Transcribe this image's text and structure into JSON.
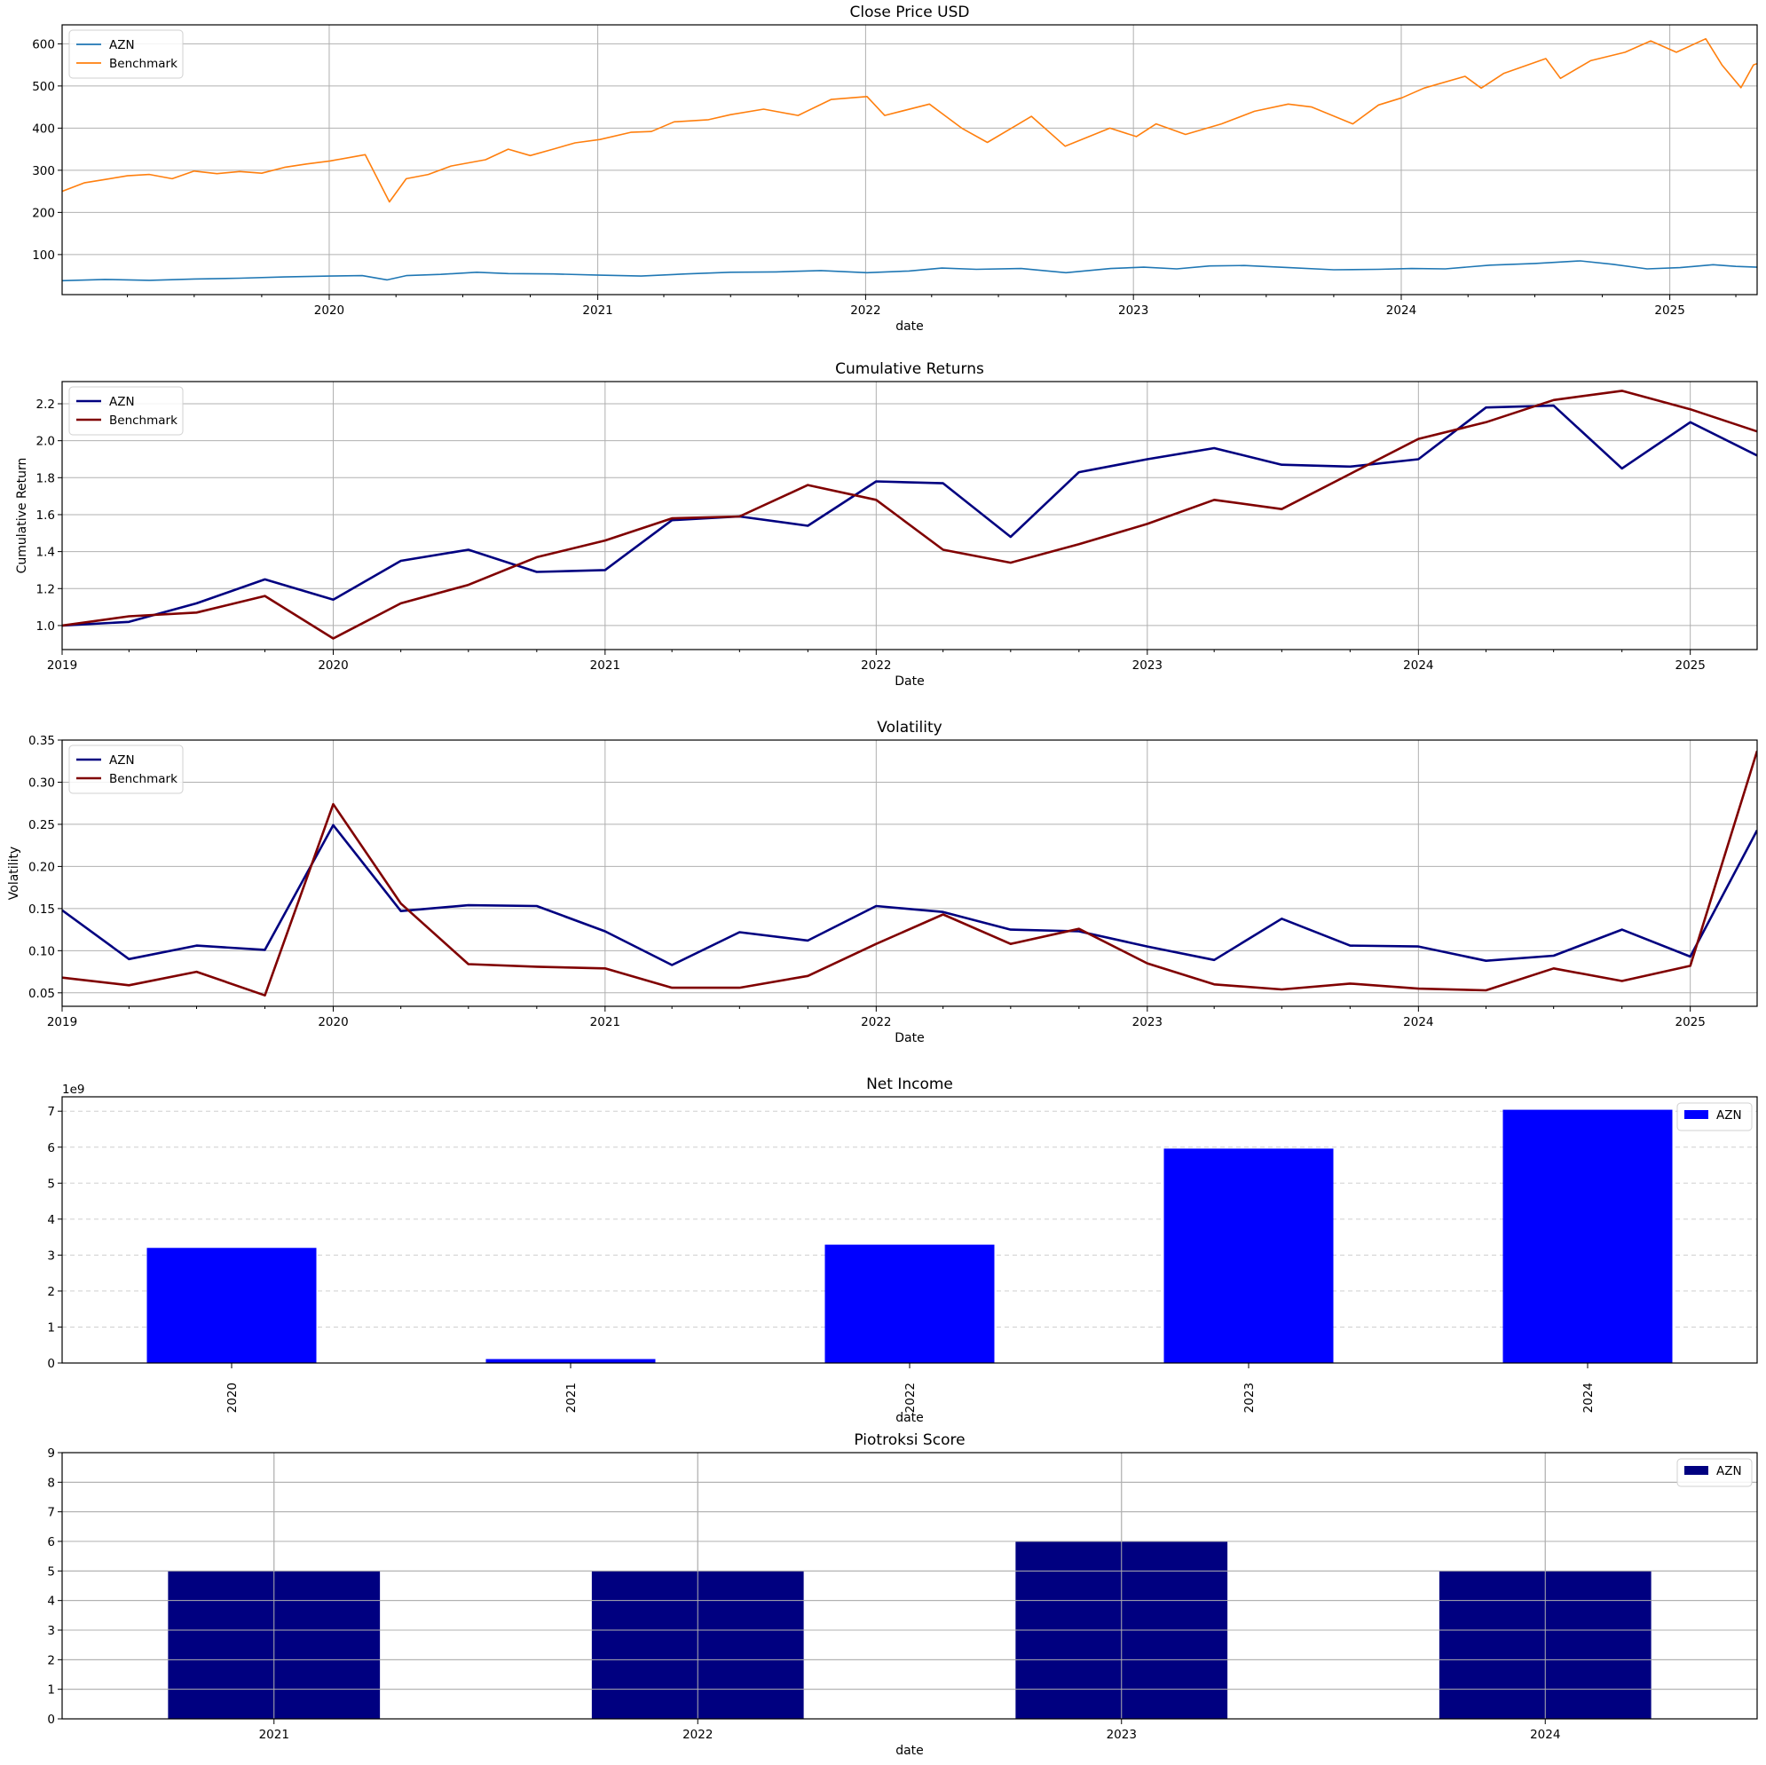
{
  "chart_data": [
    {
      "id": "close-price",
      "type": "line",
      "title": "Close Price USD",
      "xlabel": "date",
      "ylabel": "",
      "x_range": [
        "2019-01-02",
        "2025-04-30"
      ],
      "ylim": [
        5,
        645
      ],
      "yticks": [
        100,
        200,
        300,
        400,
        500,
        600
      ],
      "xticks": [
        "2020",
        "2021",
        "2022",
        "2023",
        "2024",
        "2025"
      ],
      "grid": true,
      "legend": "top-left",
      "series": [
        {
          "name": "AZN",
          "color": "#1f77b4",
          "points": [
            [
              "2019-01-02",
              38
            ],
            [
              "2019-03-01",
              41
            ],
            [
              "2019-05-01",
              39
            ],
            [
              "2019-07-01",
              42
            ],
            [
              "2019-09-01",
              44
            ],
            [
              "2019-11-01",
              47
            ],
            [
              "2020-01-02",
              49
            ],
            [
              "2020-02-15",
              50
            ],
            [
              "2020-03-20",
              40
            ],
            [
              "2020-04-15",
              50
            ],
            [
              "2020-06-01",
              53
            ],
            [
              "2020-07-20",
              58
            ],
            [
              "2020-09-01",
              55
            ],
            [
              "2020-11-01",
              54
            ],
            [
              "2021-01-04",
              51
            ],
            [
              "2021-03-01",
              49
            ],
            [
              "2021-05-01",
              54
            ],
            [
              "2021-07-01",
              58
            ],
            [
              "2021-09-01",
              59
            ],
            [
              "2021-11-01",
              62
            ],
            [
              "2022-01-03",
              57
            ],
            [
              "2022-03-01",
              61
            ],
            [
              "2022-04-15",
              68
            ],
            [
              "2022-06-01",
              65
            ],
            [
              "2022-08-01",
              67
            ],
            [
              "2022-10-01",
              57
            ],
            [
              "2022-12-01",
              67
            ],
            [
              "2023-01-15",
              70
            ],
            [
              "2023-03-01",
              66
            ],
            [
              "2023-04-15",
              73
            ],
            [
              "2023-06-01",
              74
            ],
            [
              "2023-08-01",
              69
            ],
            [
              "2023-10-01",
              64
            ],
            [
              "2023-12-01",
              65
            ],
            [
              "2024-01-15",
              67
            ],
            [
              "2024-03-01",
              66
            ],
            [
              "2024-05-01",
              75
            ],
            [
              "2024-07-01",
              79
            ],
            [
              "2024-09-01",
              85
            ],
            [
              "2024-10-15",
              77
            ],
            [
              "2024-12-01",
              66
            ],
            [
              "2025-01-15",
              69
            ],
            [
              "2025-03-01",
              76
            ],
            [
              "2025-04-01",
              72
            ],
            [
              "2025-04-30",
              70
            ]
          ]
        },
        {
          "name": "Benchmark",
          "color": "#ff7f0e",
          "points": [
            [
              "2019-01-02",
              250
            ],
            [
              "2019-02-01",
              270
            ],
            [
              "2019-03-01",
              278
            ],
            [
              "2019-04-01",
              287
            ],
            [
              "2019-05-01",
              290
            ],
            [
              "2019-06-01",
              280
            ],
            [
              "2019-07-01",
              298
            ],
            [
              "2019-08-01",
              292
            ],
            [
              "2019-09-01",
              297
            ],
            [
              "2019-10-01",
              293
            ],
            [
              "2019-11-01",
              307
            ],
            [
              "2019-12-01",
              315
            ],
            [
              "2020-01-02",
              322
            ],
            [
              "2020-02-19",
              337
            ],
            [
              "2020-03-23",
              225
            ],
            [
              "2020-04-15",
              280
            ],
            [
              "2020-05-15",
              290
            ],
            [
              "2020-06-15",
              310
            ],
            [
              "2020-08-01",
              325
            ],
            [
              "2020-09-01",
              350
            ],
            [
              "2020-10-01",
              335
            ],
            [
              "2020-11-01",
              350
            ],
            [
              "2020-12-01",
              365
            ],
            [
              "2021-01-04",
              373
            ],
            [
              "2021-02-15",
              390
            ],
            [
              "2021-03-15",
              392
            ],
            [
              "2021-04-15",
              415
            ],
            [
              "2021-06-01",
              420
            ],
            [
              "2021-07-01",
              432
            ],
            [
              "2021-08-15",
              445
            ],
            [
              "2021-10-01",
              430
            ],
            [
              "2021-11-15",
              468
            ],
            [
              "2022-01-03",
              475
            ],
            [
              "2022-01-27",
              430
            ],
            [
              "2022-03-29",
              457
            ],
            [
              "2022-05-12",
              400
            ],
            [
              "2022-06-16",
              366
            ],
            [
              "2022-08-15",
              428
            ],
            [
              "2022-09-30",
              357
            ],
            [
              "2022-11-30",
              400
            ],
            [
              "2023-01-05",
              380
            ],
            [
              "2023-02-01",
              410
            ],
            [
              "2023-03-13",
              385
            ],
            [
              "2023-05-01",
              410
            ],
            [
              "2023-06-15",
              440
            ],
            [
              "2023-07-31",
              457
            ],
            [
              "2023-09-01",
              450
            ],
            [
              "2023-10-27",
              410
            ],
            [
              "2023-12-01",
              455
            ],
            [
              "2024-01-02",
              472
            ],
            [
              "2024-02-01",
              495
            ],
            [
              "2024-03-28",
              523
            ],
            [
              "2024-04-19",
              495
            ],
            [
              "2024-05-20",
              530
            ],
            [
              "2024-07-16",
              565
            ],
            [
              "2024-08-05",
              518
            ],
            [
              "2024-09-15",
              560
            ],
            [
              "2024-11-01",
              580
            ],
            [
              "2024-12-06",
              607
            ],
            [
              "2025-01-10",
              580
            ],
            [
              "2025-02-19",
              612
            ],
            [
              "2025-03-13",
              550
            ],
            [
              "2025-04-08",
              496
            ],
            [
              "2025-04-25",
              550
            ],
            [
              "2025-04-30",
              553
            ]
          ]
        }
      ]
    },
    {
      "id": "cumulative-returns",
      "type": "line",
      "title": "Cumulative Returns",
      "xlabel": "Date",
      "ylabel": "Cumulative Return",
      "x_range": [
        "2019-01-01",
        "2025-04-01"
      ],
      "ylim": [
        0.87,
        2.32
      ],
      "yticks": [
        1.0,
        1.2,
        1.4,
        1.6,
        1.8,
        2.0,
        2.2
      ],
      "ytick_labels": [
        "1.0",
        "1.2",
        "1.4",
        "1.6",
        "1.8",
        "2.0",
        "2.2"
      ],
      "xticks": [
        "2019",
        "2020",
        "2021",
        "2022",
        "2023",
        "2024",
        "2025"
      ],
      "grid": true,
      "legend": "top-left",
      "x": [
        "2019-01-01",
        "2019-04-01",
        "2019-07-01",
        "2019-10-01",
        "2020-01-01",
        "2020-04-01",
        "2020-07-01",
        "2020-10-01",
        "2021-01-01",
        "2021-04-01",
        "2021-07-01",
        "2021-10-01",
        "2022-01-01",
        "2022-04-01",
        "2022-07-01",
        "2022-10-01",
        "2023-01-01",
        "2023-04-01",
        "2023-07-01",
        "2023-10-01",
        "2024-01-01",
        "2024-04-01",
        "2024-07-01",
        "2024-10-01",
        "2025-01-01",
        "2025-04-01"
      ],
      "series": [
        {
          "name": "AZN",
          "color": "#000080",
          "values": [
            1.0,
            1.02,
            1.12,
            1.25,
            1.14,
            1.35,
            1.41,
            1.29,
            1.3,
            1.57,
            1.59,
            1.54,
            1.78,
            1.77,
            1.48,
            1.83,
            1.9,
            1.96,
            1.87,
            1.86,
            1.9,
            2.18,
            2.19,
            1.85,
            2.1,
            1.92
          ]
        },
        {
          "name": "Benchmark",
          "color": "#800000",
          "values": [
            1.0,
            1.05,
            1.07,
            1.16,
            0.93,
            1.12,
            1.22,
            1.37,
            1.46,
            1.58,
            1.59,
            1.76,
            1.68,
            1.41,
            1.34,
            1.44,
            1.55,
            1.68,
            1.63,
            1.82,
            2.01,
            2.1,
            2.22,
            2.27,
            2.17,
            2.05
          ]
        }
      ]
    },
    {
      "id": "volatility",
      "type": "line",
      "title": "Volatility",
      "xlabel": "Date",
      "ylabel": "Volatility",
      "x_range": [
        "2019-01-01",
        "2025-04-01"
      ],
      "ylim": [
        0.034,
        0.35
      ],
      "yticks": [
        0.05,
        0.1,
        0.15,
        0.2,
        0.25,
        0.3,
        0.35
      ],
      "ytick_labels": [
        "0.05",
        "0.10",
        "0.15",
        "0.20",
        "0.25",
        "0.30",
        "0.35"
      ],
      "xticks": [
        "2019",
        "2020",
        "2021",
        "2022",
        "2023",
        "2024",
        "2025"
      ],
      "grid": true,
      "legend": "top-left",
      "x": [
        "2019-01-01",
        "2019-04-01",
        "2019-07-01",
        "2019-10-01",
        "2020-01-01",
        "2020-04-01",
        "2020-07-01",
        "2020-10-01",
        "2021-01-01",
        "2021-04-01",
        "2021-07-01",
        "2021-10-01",
        "2022-01-01",
        "2022-04-01",
        "2022-07-01",
        "2022-10-01",
        "2023-01-01",
        "2023-04-01",
        "2023-07-01",
        "2023-10-01",
        "2024-01-01",
        "2024-04-01",
        "2024-07-01",
        "2024-10-01",
        "2025-01-01",
        "2025-04-01"
      ],
      "series": [
        {
          "name": "AZN",
          "color": "#000080",
          "values": [
            0.148,
            0.09,
            0.106,
            0.101,
            0.249,
            0.147,
            0.154,
            0.153,
            0.123,
            0.083,
            0.122,
            0.112,
            0.153,
            0.146,
            0.125,
            0.123,
            0.105,
            0.089,
            0.138,
            0.106,
            0.105,
            0.088,
            0.094,
            0.125,
            0.093,
            0.243
          ]
        },
        {
          "name": "Benchmark",
          "color": "#800000",
          "values": [
            0.068,
            0.059,
            0.075,
            0.047,
            0.274,
            0.156,
            0.084,
            0.081,
            0.079,
            0.056,
            0.056,
            0.07,
            0.108,
            0.143,
            0.108,
            0.126,
            0.085,
            0.06,
            0.054,
            0.061,
            0.055,
            0.053,
            0.079,
            0.064,
            0.082,
            0.337
          ]
        }
      ]
    },
    {
      "id": "net-income",
      "type": "bar",
      "title": "Net Income",
      "xlabel": "date",
      "ylabel": "",
      "offset_label": "1e9",
      "categories": [
        "2020",
        "2021",
        "2022",
        "2023",
        "2024"
      ],
      "ylim": [
        0,
        7.4
      ],
      "yticks": [
        0,
        1,
        2,
        3,
        4,
        5,
        6,
        7
      ],
      "grid": "dashed-horizontal",
      "legend": "top-right",
      "rotate_xticks": true,
      "series": [
        {
          "name": "AZN",
          "color": "#0000ff",
          "values": [
            3.2,
            0.11,
            3.29,
            5.96,
            7.04
          ]
        }
      ]
    },
    {
      "id": "piotroski-score",
      "type": "bar",
      "title": "Piotroksi Score",
      "xlabel": "date",
      "ylabel": "",
      "categories": [
        "2021",
        "2022",
        "2023",
        "2024"
      ],
      "ylim": [
        0,
        9
      ],
      "yticks": [
        0,
        1,
        2,
        3,
        4,
        5,
        6,
        7,
        8,
        9
      ],
      "grid": true,
      "legend": "top-right",
      "series": [
        {
          "name": "AZN",
          "color": "#000080",
          "values": [
            5,
            5,
            6,
            5
          ]
        }
      ]
    }
  ]
}
